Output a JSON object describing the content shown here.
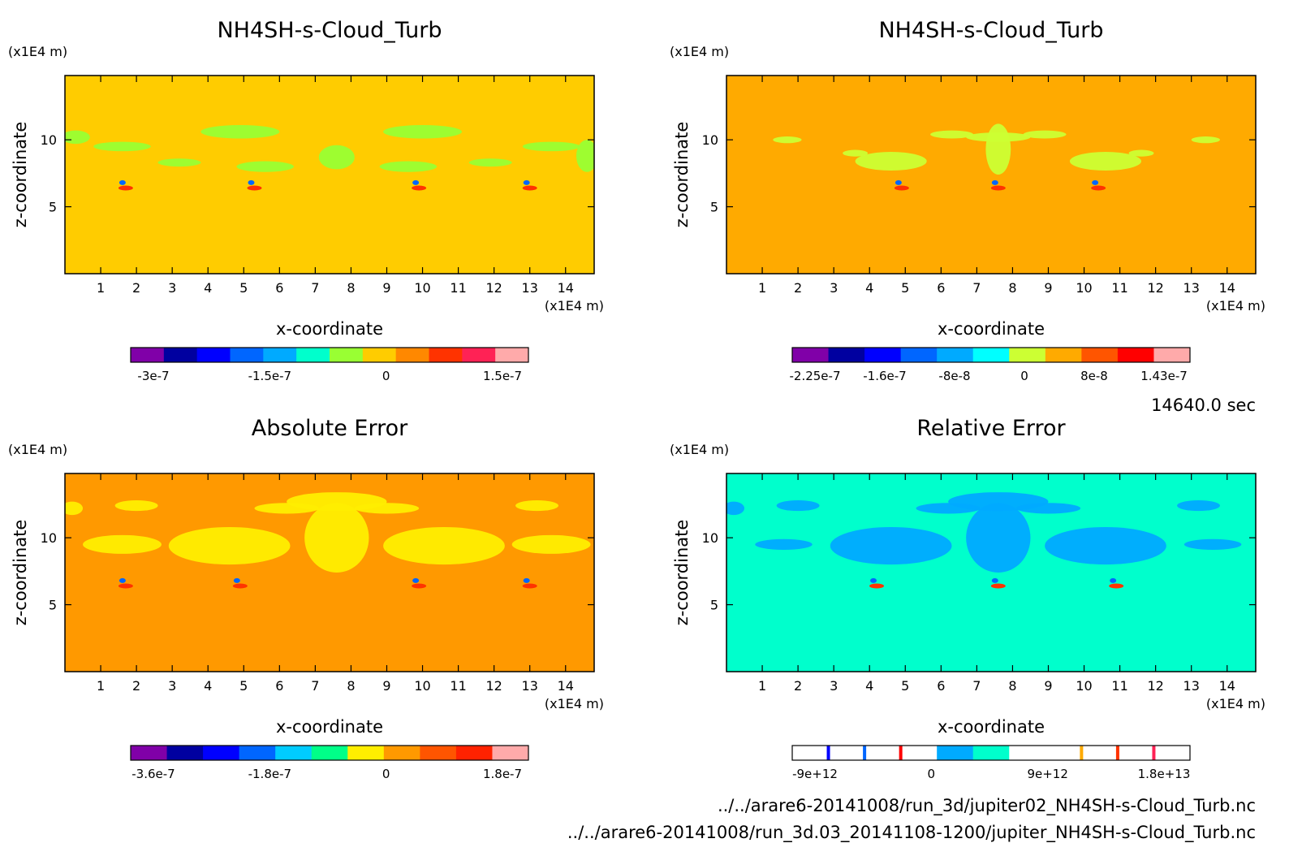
{
  "time_label": "14640.0 sec",
  "file_paths": [
    "../../arare6-20141008/run_3d/jupiter02_NH4SH-s-Cloud_Turb.nc",
    "../../arare6-20141008/run_3d.03_20141108-1200/jupiter_NH4SH-s-Cloud_Turb.nc"
  ],
  "chart_data": [
    {
      "type": "heatmap",
      "title": "NH4SH-s-Cloud_Turb",
      "xlabel": "x-coordinate",
      "ylabel": "z-coordinate",
      "x_unit": "(x1E4 m)",
      "y_unit": "(x1E4 m)",
      "x_ticks": [
        "1",
        "2",
        "3",
        "4",
        "5",
        "6",
        "7",
        "8",
        "9",
        "10",
        "11",
        "12",
        "13",
        "14"
      ],
      "y_ticks": [
        "5",
        "10"
      ],
      "xlim": [
        0,
        14.8
      ],
      "ylim": [
        0,
        14.8
      ],
      "background_color": "#ffcc00",
      "feature_color": "#99ff33",
      "colorbar": {
        "colors": [
          "#8000a8",
          "#0000a0",
          "#0000ff",
          "#0066ff",
          "#00aaff",
          "#00ffcc",
          "#99ff33",
          "#ffcc00",
          "#ff8800",
          "#ff3300",
          "#ff2255",
          "#ffaaaa"
        ],
        "labels": [
          "-3e-7",
          "-1.5e-7",
          "0",
          "1.5e-7"
        ]
      }
    },
    {
      "type": "heatmap",
      "title": "NH4SH-s-Cloud_Turb",
      "xlabel": "x-coordinate",
      "ylabel": "z-coordinate",
      "x_unit": "(x1E4 m)",
      "y_unit": "(x1E4 m)",
      "x_ticks": [
        "1",
        "2",
        "3",
        "4",
        "5",
        "6",
        "7",
        "8",
        "9",
        "10",
        "11",
        "12",
        "13",
        "14"
      ],
      "y_ticks": [
        "5",
        "10"
      ],
      "xlim": [
        0,
        14.8
      ],
      "ylim": [
        0,
        14.8
      ],
      "background_color": "#ffaa00",
      "feature_color": "#ccff33",
      "colorbar": {
        "colors": [
          "#8000a8",
          "#0000a0",
          "#0000ff",
          "#0066ff",
          "#00aaff",
          "#00ffff",
          "#ccff33",
          "#ffaa00",
          "#ff5500",
          "#ff0000",
          "#ffaaaa"
        ],
        "labels": [
          "-2.25e-7",
          "-1.6e-7",
          "-8e-8",
          "0",
          "8e-8",
          "1.43e-7"
        ]
      }
    },
    {
      "type": "heatmap",
      "title": "Absolute Error",
      "xlabel": "x-coordinate",
      "ylabel": "z-coordinate",
      "x_unit": "(x1E4 m)",
      "y_unit": "(x1E4 m)",
      "x_ticks": [
        "1",
        "2",
        "3",
        "4",
        "5",
        "6",
        "7",
        "8",
        "9",
        "10",
        "11",
        "12",
        "13",
        "14"
      ],
      "y_ticks": [
        "5",
        "10"
      ],
      "xlim": [
        0,
        14.8
      ],
      "ylim": [
        0,
        14.8
      ],
      "background_color": "#ff9900",
      "feature_color": "#ffee00",
      "colorbar": {
        "colors": [
          "#8000a8",
          "#0000a0",
          "#0000ff",
          "#0066ff",
          "#00ccff",
          "#00ff88",
          "#ffee00",
          "#ff9900",
          "#ff5500",
          "#ff2200",
          "#ffaaaa"
        ],
        "labels": [
          "-3.6e-7",
          "-1.8e-7",
          "0",
          "1.8e-7"
        ]
      }
    },
    {
      "type": "heatmap",
      "title": "Relative Error",
      "xlabel": "x-coordinate",
      "ylabel": "z-coordinate",
      "x_unit": "(x1E4 m)",
      "y_unit": "(x1E4 m)",
      "x_ticks": [
        "1",
        "2",
        "3",
        "4",
        "5",
        "6",
        "7",
        "8",
        "9",
        "10",
        "11",
        "12",
        "13",
        "14"
      ],
      "y_ticks": [
        "5",
        "10"
      ],
      "xlim": [
        0,
        14.8
      ],
      "ylim": [
        0,
        14.8
      ],
      "background_color": "#00ffcc",
      "feature_color": "#00aaff",
      "colorbar": {
        "colors": [
          "#ffffff",
          "#ffffff",
          "#ffffff",
          "#ffffff",
          "#00aaff",
          "#00ffcc",
          "#ffffff",
          "#ffffff",
          "#ffffff",
          "#ffffff",
          "#ffffff"
        ],
        "labels": [
          "-9e+12",
          "0",
          "9e+12",
          "1.8e+13"
        ]
      }
    }
  ]
}
